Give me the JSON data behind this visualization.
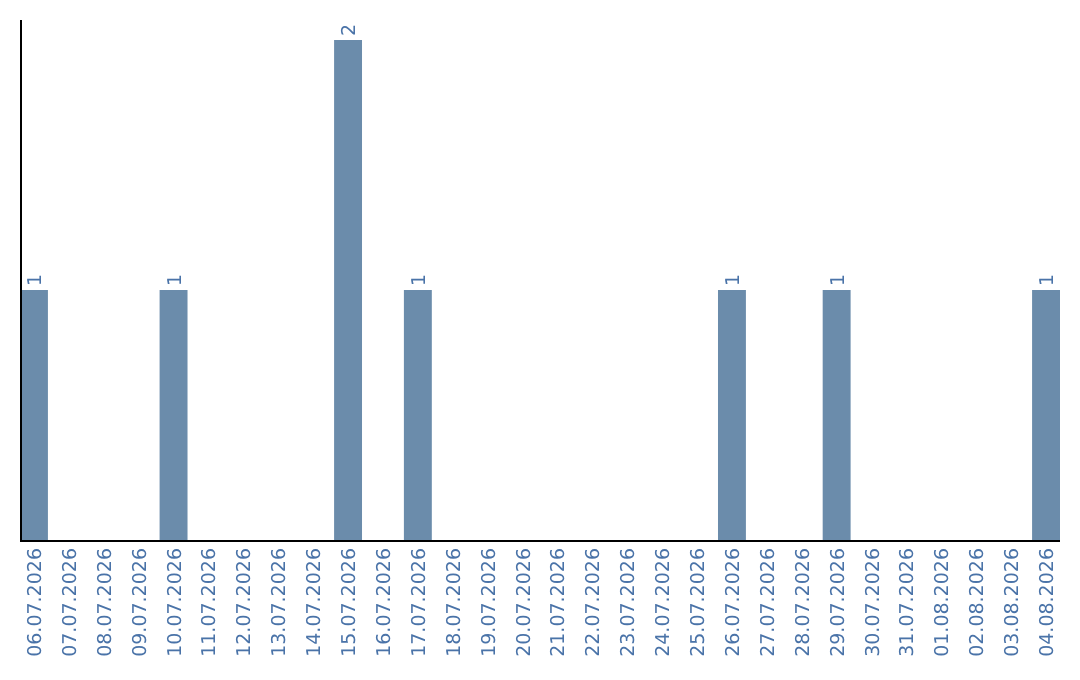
{
  "chart_data": {
    "type": "bar",
    "categories": [
      "06.07.2026",
      "07.07.2026",
      "08.07.2026",
      "09.07.2026",
      "10.07.2026",
      "11.07.2026",
      "12.07.2026",
      "13.07.2026",
      "14.07.2026",
      "15.07.2026",
      "16.07.2026",
      "17.07.2026",
      "18.07.2026",
      "19.07.2026",
      "20.07.2026",
      "21.07.2026",
      "22.07.2026",
      "23.07.2026",
      "24.07.2026",
      "25.07.2026",
      "26.07.2026",
      "27.07.2026",
      "28.07.2026",
      "29.07.2026",
      "30.07.2026",
      "31.07.2026",
      "01.08.2026",
      "02.08.2026",
      "03.08.2026",
      "04.08.2026"
    ],
    "values": [
      1,
      0,
      0,
      0,
      1,
      0,
      0,
      0,
      0,
      2,
      0,
      1,
      0,
      0,
      0,
      0,
      0,
      0,
      0,
      0,
      1,
      0,
      0,
      1,
      0,
      0,
      0,
      0,
      0,
      1
    ],
    "value_labels": [
      "1",
      null,
      null,
      null,
      "1",
      null,
      null,
      null,
      null,
      "2",
      null,
      "1",
      null,
      null,
      null,
      null,
      null,
      null,
      null,
      null,
      "1",
      null,
      null,
      "1",
      null,
      null,
      null,
      null,
      null,
      "1"
    ],
    "color": "#6b8cab"
  }
}
